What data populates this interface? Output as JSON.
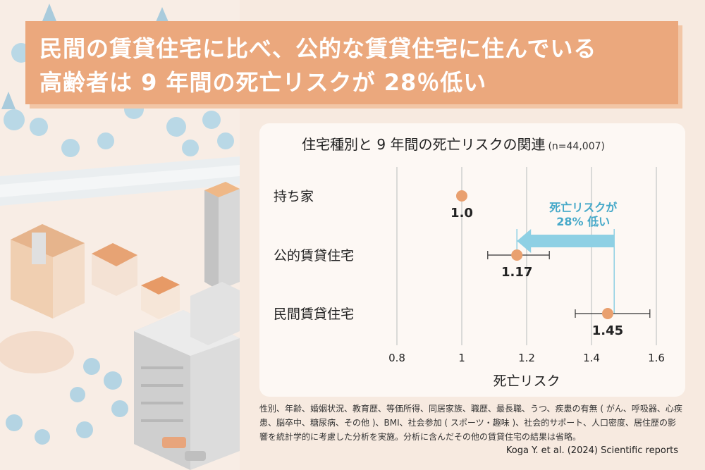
{
  "headline": {
    "line1": "民間の賃貸住宅に比べ、公的な賃貸住宅に住んでいる",
    "line2": "高齢者は 9 年間の死亡リスクが 28％低い"
  },
  "chart_data": {
    "type": "scatter",
    "title": "住宅種別と 9 年間の死亡リスクの関連",
    "subtitle": "(n=44,007)",
    "xlabel": "死亡リスク",
    "ylabel": "",
    "xlim": [
      0.8,
      1.6
    ],
    "xticks": [
      0.8,
      1,
      1.2,
      1.4,
      1.6
    ],
    "xtick_labels": [
      "0.8",
      "1",
      "1.2",
      "1.4",
      "1.6"
    ],
    "grid": true,
    "categories": [
      "持ち家",
      "公的賃貸住宅",
      "民間賃貸住宅"
    ],
    "values": [
      1.0,
      1.17,
      1.45
    ],
    "value_labels": [
      "1.0",
      "1.17",
      "1.45"
    ],
    "ci_low": [
      null,
      1.08,
      1.35
    ],
    "ci_high": [
      null,
      1.27,
      1.58
    ],
    "annotation": {
      "text_line1": "死亡リスクが",
      "text_line2": "28% 低い",
      "from": 1.47,
      "to": 1.17
    },
    "colors": {
      "point": "#e9a06f",
      "arrow": "#8ed0e4",
      "annotation_text": "#46a9c9",
      "grid": "#cfcfcf"
    }
  },
  "footnote": "性別、年齢、婚姻状況、教育歴、等価所得、同居家族、職歴、最長職、うつ、疾患の有無 ( がん、呼吸器、心疾患、脳卒中、糖尿病、その他 )、BMI、社会参加 ( スポーツ・趣味 )、社会的サポート、人口密度、居住歴の影響を統計学的に考慮した分析を実施。分析に含んだその他の賃貸住宅の結果は省略。",
  "citation": "Koga Y. et al. (2024) Scientific reports"
}
